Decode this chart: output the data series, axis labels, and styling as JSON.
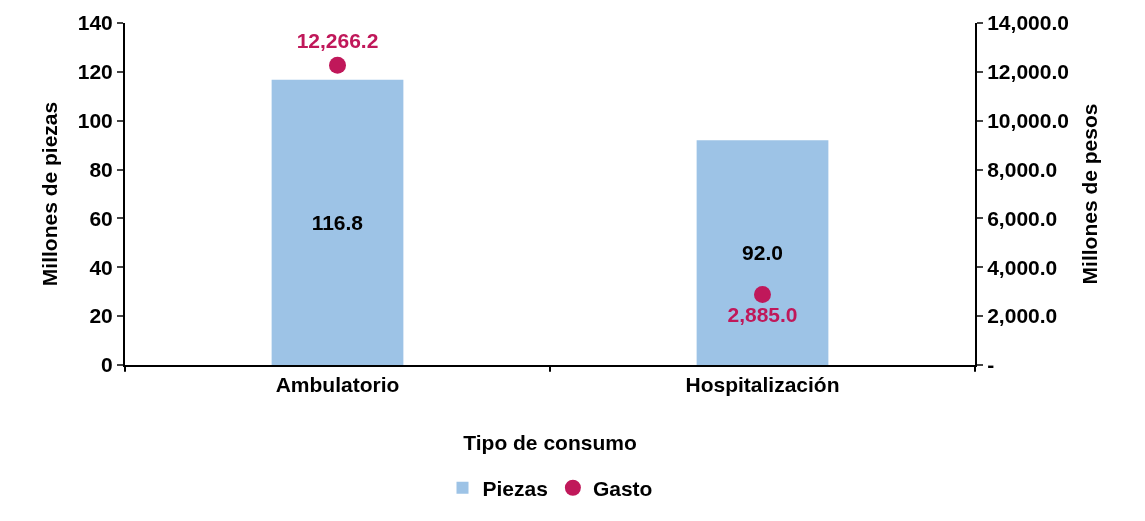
{
  "chart_data": {
    "type": "bar",
    "xlabel": "Tipo de consumo",
    "ylabel": "Millones de piezas",
    "y2label": "Millones de pesos",
    "categories": [
      "Ambulatorio",
      "Hospitalización"
    ],
    "series": [
      {
        "name": "Piezas",
        "color": "#9dc3e6",
        "values": [
          116.8,
          92.0
        ],
        "value_labels": [
          "116.8",
          "92.0"
        ]
      },
      {
        "name": "Gasto",
        "type": "scatter",
        "axis": "y2",
        "color": "#c0185a",
        "values": [
          12266.2,
          2885.0
        ],
        "value_labels": [
          "12,266.2",
          "2,885.0"
        ]
      }
    ],
    "ylim": [
      0,
      140
    ],
    "yticks": [
      0,
      20,
      40,
      60,
      80,
      100,
      120,
      140
    ],
    "y2lim": [
      0,
      14000
    ],
    "y2ticks": [
      {
        "value": 0,
        "label": "-"
      },
      {
        "value": 2000,
        "label": "2,000.0"
      },
      {
        "value": 4000,
        "label": "4,000.0"
      },
      {
        "value": 6000,
        "label": "6,000.0"
      },
      {
        "value": 8000,
        "label": "8,000.0"
      },
      {
        "value": 10000,
        "label": "10,000.0"
      },
      {
        "value": 12000,
        "label": "12,000.0"
      },
      {
        "value": 14000,
        "label": "14,000.0"
      }
    ],
    "marker": "circle",
    "grid": false,
    "legend": "bottom"
  }
}
